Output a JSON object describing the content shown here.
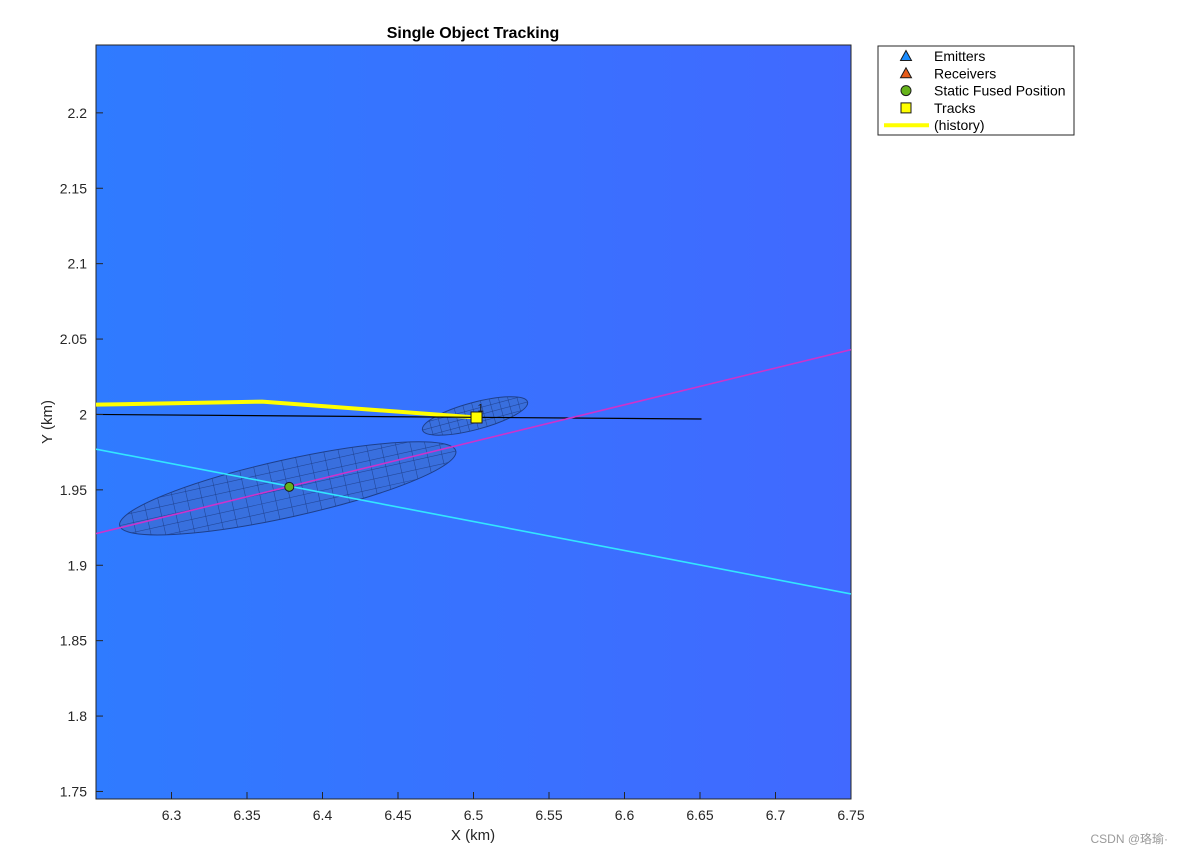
{
  "chart_data": {
    "type": "scatter",
    "title": "Single Object Tracking",
    "xlabel": "X (km)",
    "ylabel": "Y (km)",
    "xlim": [
      6.25,
      6.75
    ],
    "ylim": [
      1.745,
      2.245
    ],
    "xticks": [
      "6.3",
      "6.35",
      "6.4",
      "6.45",
      "6.5",
      "6.55",
      "6.6",
      "6.65",
      "6.7",
      "6.75"
    ],
    "yticks": [
      "1.75",
      "1.8",
      "1.85",
      "1.9",
      "1.95",
      "2",
      "2.05",
      "2.1",
      "2.15",
      "2.2"
    ],
    "xtick_values": [
      6.3,
      6.35,
      6.4,
      6.45,
      6.5,
      6.55,
      6.6,
      6.65,
      6.7,
      6.75
    ],
    "ytick_values": [
      1.75,
      1.8,
      1.85,
      1.9,
      1.95,
      2.0,
      2.05,
      2.1,
      2.15,
      2.2
    ],
    "grid": false,
    "legend_position": "outside-top-right",
    "background_colors": {
      "left": "#2f7bff",
      "right": "#4169ff"
    },
    "lines": [
      {
        "label": "(history)",
        "role": "track-history",
        "color": "#ffff00",
        "width": 4,
        "x": [
          6.25,
          6.36,
          6.502
        ],
        "y": [
          2.0065,
          2.0085,
          1.998
        ]
      },
      {
        "role": "black-line",
        "color": "#000000",
        "width": 1.2,
        "x": [
          6.25,
          6.651
        ],
        "y": [
          2.0,
          1.997
        ]
      },
      {
        "role": "magenta-line",
        "color": "#cc33cc",
        "width": 1.6,
        "x": [
          6.25,
          6.75
        ],
        "y": [
          1.921,
          2.043
        ]
      },
      {
        "role": "cyan-line",
        "color": "#33e6ff",
        "width": 1.6,
        "x": [
          6.25,
          6.75
        ],
        "y": [
          1.977,
          1.881
        ]
      }
    ],
    "ellipses": [
      {
        "role": "fused-position-covariance",
        "cx": 6.377,
        "cy": 1.951,
        "rx": 0.114,
        "ry": 0.019,
        "angle_deg": -12.5
      },
      {
        "role": "track-covariance",
        "cx": 6.501,
        "cy": 1.999,
        "rx": 0.036,
        "ry": 0.009,
        "angle_deg": -15
      }
    ],
    "series": [
      {
        "name": "Emitters",
        "marker": "triangle",
        "color": "#1a8cff",
        "x": [],
        "y": []
      },
      {
        "name": "Receivers",
        "marker": "triangle",
        "color": "#e65c1a",
        "x": [],
        "y": []
      },
      {
        "name": "Static Fused Position",
        "marker": "circle",
        "color": "#66b31a",
        "x": [
          6.378
        ],
        "y": [
          1.952
        ]
      },
      {
        "name": "Tracks",
        "marker": "square",
        "color": "#ffff00",
        "x": [
          6.502
        ],
        "y": [
          1.998
        ],
        "labels": [
          "1"
        ]
      }
    ],
    "legend": [
      {
        "label": "Emitters",
        "marker": "triangle",
        "color": "#1a8cff"
      },
      {
        "label": "Receivers",
        "marker": "triangle",
        "color": "#e65c1a"
      },
      {
        "label": "Static Fused Position",
        "marker": "circle",
        "color": "#66b31a"
      },
      {
        "label": "Tracks",
        "marker": "square",
        "color": "#ffff00"
      },
      {
        "label": "(history)",
        "marker": "line",
        "color": "#ffff00"
      }
    ]
  },
  "watermark": "CSDN @珞瑜·"
}
